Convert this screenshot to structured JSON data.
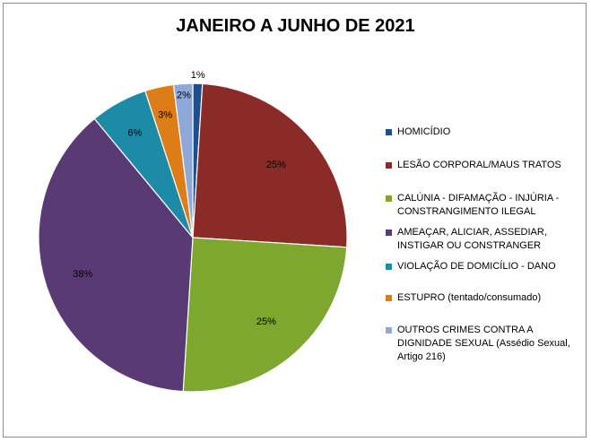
{
  "chart_data": {
    "type": "pie",
    "title": "JANEIRO A JUNHO DE 2021",
    "legend_position": "right",
    "slices": [
      {
        "name": "HOMICÍDIO",
        "value": 1,
        "label": "1%",
        "color": "#1f4e8c"
      },
      {
        "name": "LESÃO CORPORAL/MAUS TRATOS",
        "value": 25,
        "label": "25%",
        "color": "#8b2b27"
      },
      {
        "name": "CALÚNIA - DIFAMAÇÃO - INJÚRIA - CONSTRANGIMENTO ILEGAL",
        "value": 25,
        "label": "25%",
        "color": "#7ea72f"
      },
      {
        "name": "AMEAÇAR, ALICIAR, ASSEDIAR, INSTIGAR OU CONSTRANGER",
        "value": 38,
        "label": "38%",
        "color": "#5a3a75"
      },
      {
        "name": "VIOLAÇÃO DE DOMICÍLIO - DANO",
        "value": 6,
        "label": "6%",
        "color": "#1d8aa6"
      },
      {
        "name": "ESTUPRO (tentado/consumado)",
        "value": 3,
        "label": "3%",
        "color": "#dc7d17"
      },
      {
        "name": "OUTROS CRIMES CONTRA A DIGNIDADE SEXUAL (Assédio Sexual, Artigo 216)",
        "value": 2,
        "label": "2%",
        "color": "#8ea8d8"
      }
    ]
  }
}
